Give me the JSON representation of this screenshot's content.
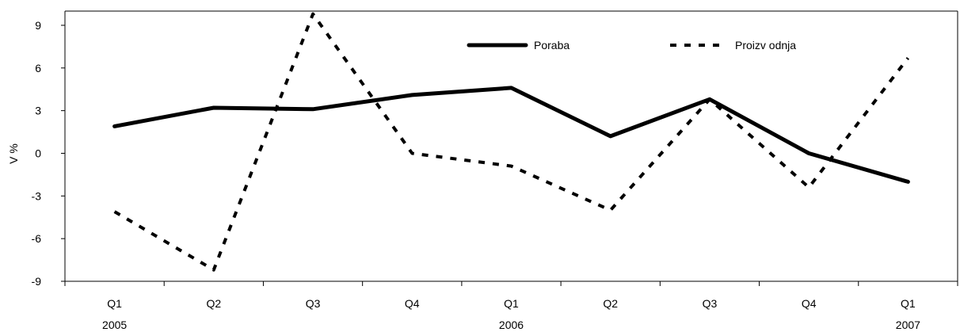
{
  "chart_data": {
    "type": "line",
    "title": "",
    "ylabel": "V %",
    "xlabel": "",
    "categories": [
      "Q1",
      "Q2",
      "Q3",
      "Q4",
      "Q1",
      "Q2",
      "Q3",
      "Q4",
      "Q1"
    ],
    "years": [
      "2005",
      "",
      "",
      "",
      "2006",
      "",
      "",
      "",
      "2007"
    ],
    "yticks": [
      "9",
      "6",
      "3",
      "0",
      "-3",
      "-6",
      "-9"
    ],
    "ylim": [
      -9,
      10
    ],
    "grid": false,
    "legend_position": "top-right",
    "series": [
      {
        "name": "Poraba",
        "style": "solid",
        "color": "#000000",
        "values": [
          1.9,
          3.2,
          3.1,
          4.1,
          4.6,
          1.2,
          3.8,
          0.0,
          -2.0
        ]
      },
      {
        "name": "Proizv odnja",
        "style": "dashed",
        "color": "#000000",
        "values": [
          -4.1,
          -8.2,
          9.8,
          0.0,
          -0.9,
          -4.0,
          3.8,
          -2.4,
          6.7
        ]
      }
    ]
  }
}
